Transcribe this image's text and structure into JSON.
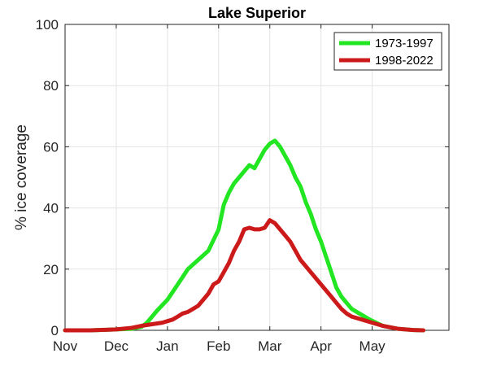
{
  "chart_data": {
    "type": "line",
    "title": "Lake Superior",
    "xlabel": "",
    "ylabel": "% ice coverage",
    "x_categories": [
      "Nov",
      "Dec",
      "Jan",
      "Feb",
      "Mar",
      "Apr",
      "May"
    ],
    "xlim": [
      0,
      7.5
    ],
    "ylim": [
      0,
      100
    ],
    "yticks": [
      0,
      20,
      40,
      60,
      80,
      100
    ],
    "grid": true,
    "legend_position": "top-right",
    "series": [
      {
        "name": "1973-1997",
        "color": "#22e622",
        "points": [
          [
            0,
            0
          ],
          [
            0.5,
            0
          ],
          [
            1.0,
            0.3
          ],
          [
            1.3,
            0.5
          ],
          [
            1.5,
            1.2
          ],
          [
            1.6,
            2.5
          ],
          [
            1.7,
            4.5
          ],
          [
            1.8,
            6.5
          ],
          [
            2.0,
            10
          ],
          [
            2.2,
            15
          ],
          [
            2.4,
            20
          ],
          [
            2.6,
            23
          ],
          [
            2.8,
            26
          ],
          [
            3.0,
            33
          ],
          [
            3.1,
            41
          ],
          [
            3.2,
            45
          ],
          [
            3.3,
            48
          ],
          [
            3.4,
            50
          ],
          [
            3.5,
            52
          ],
          [
            3.6,
            54
          ],
          [
            3.7,
            53
          ],
          [
            3.8,
            56
          ],
          [
            3.9,
            59
          ],
          [
            4.0,
            61
          ],
          [
            4.1,
            62
          ],
          [
            4.2,
            60
          ],
          [
            4.3,
            57
          ],
          [
            4.4,
            54
          ],
          [
            4.5,
            50
          ],
          [
            4.6,
            47
          ],
          [
            4.7,
            42
          ],
          [
            4.8,
            38
          ],
          [
            4.9,
            33
          ],
          [
            5.0,
            29
          ],
          [
            5.1,
            24
          ],
          [
            5.2,
            19
          ],
          [
            5.3,
            14
          ],
          [
            5.4,
            11
          ],
          [
            5.5,
            9
          ],
          [
            5.6,
            7
          ],
          [
            5.8,
            5
          ],
          [
            5.95,
            3.5
          ],
          [
            6.2,
            1.5
          ],
          [
            6.5,
            0.5
          ],
          [
            6.8,
            0.1
          ],
          [
            7.0,
            0
          ]
        ]
      },
      {
        "name": "1998-2022",
        "color": "#cc1a1a",
        "points": [
          [
            0,
            0
          ],
          [
            0.5,
            0
          ],
          [
            1.0,
            0.3
          ],
          [
            1.3,
            0.8
          ],
          [
            1.5,
            1.5
          ],
          [
            1.7,
            2
          ],
          [
            1.9,
            2.5
          ],
          [
            2.0,
            3
          ],
          [
            2.1,
            3.5
          ],
          [
            2.2,
            4.5
          ],
          [
            2.3,
            5.5
          ],
          [
            2.4,
            6
          ],
          [
            2.5,
            7
          ],
          [
            2.6,
            8
          ],
          [
            2.7,
            10
          ],
          [
            2.8,
            12
          ],
          [
            2.9,
            15
          ],
          [
            3.0,
            16
          ],
          [
            3.1,
            19
          ],
          [
            3.2,
            22
          ],
          [
            3.3,
            26
          ],
          [
            3.4,
            29
          ],
          [
            3.5,
            33
          ],
          [
            3.6,
            33.5
          ],
          [
            3.7,
            33
          ],
          [
            3.8,
            33
          ],
          [
            3.9,
            33.5
          ],
          [
            4.0,
            36
          ],
          [
            4.1,
            35
          ],
          [
            4.2,
            33
          ],
          [
            4.3,
            31
          ],
          [
            4.4,
            29
          ],
          [
            4.5,
            26
          ],
          [
            4.6,
            23
          ],
          [
            4.7,
            21
          ],
          [
            4.8,
            19
          ],
          [
            4.9,
            17
          ],
          [
            5.0,
            15
          ],
          [
            5.1,
            13
          ],
          [
            5.2,
            11
          ],
          [
            5.3,
            9
          ],
          [
            5.4,
            7
          ],
          [
            5.5,
            5.5
          ],
          [
            5.6,
            4.5
          ],
          [
            5.8,
            3.5
          ],
          [
            6.0,
            2.5
          ],
          [
            6.2,
            1.5
          ],
          [
            6.5,
            0.5
          ],
          [
            6.8,
            0.1
          ],
          [
            7.0,
            0
          ]
        ]
      }
    ]
  }
}
